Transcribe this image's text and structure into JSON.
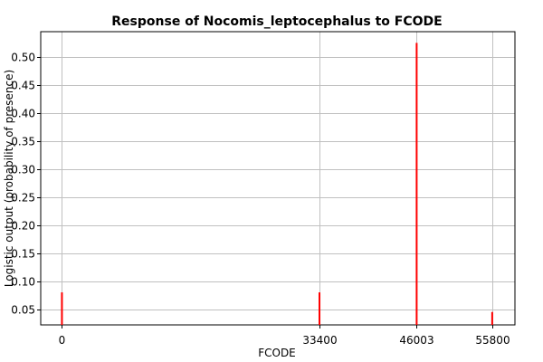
{
  "chart_data": {
    "type": "bar",
    "title": "Response of Nocomis_leptocephalus to FCODE",
    "xlabel": "FCODE",
    "ylabel": "Logistic output (probability of presence)",
    "x_ticks": [
      0,
      33400,
      46003,
      55800
    ],
    "x_tick_labels": [
      "0",
      "33400",
      "46003",
      "55800"
    ],
    "y_ticks": [
      0.05,
      0.1,
      0.15,
      0.2,
      0.25,
      0.3,
      0.35,
      0.4,
      0.45,
      0.5
    ],
    "y_tick_labels": [
      "0.05",
      "0.10",
      "0.15",
      "0.20",
      "0.25",
      "0.30",
      "0.35",
      "0.40",
      "0.45",
      "0.50"
    ],
    "xlim": [
      -2750,
      58750
    ],
    "ylim": [
      0.022,
      0.545
    ],
    "grid": true,
    "series": [
      {
        "color": "#ff0000",
        "points": [
          {
            "x": 0,
            "y": 0.08
          },
          {
            "x": 33400,
            "y": 0.08
          },
          {
            "x": 46003,
            "y": 0.525
          },
          {
            "x": 55800,
            "y": 0.045
          }
        ]
      }
    ]
  }
}
